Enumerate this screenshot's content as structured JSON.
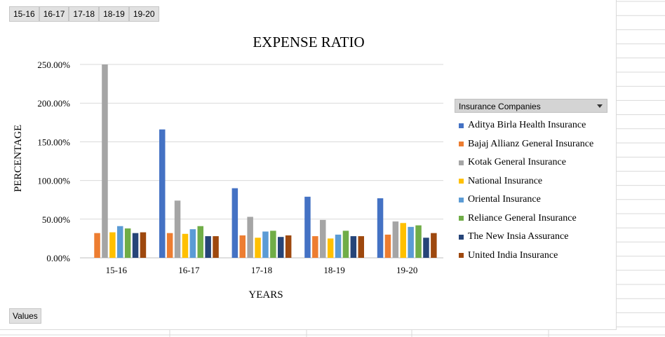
{
  "filter_buttons": [
    "15-16",
    "16-17",
    "17-18",
    "18-19",
    "19-20"
  ],
  "values_button": "Values",
  "legend_title": "Insurance  Companies",
  "chart_data": {
    "type": "bar",
    "title": "EXPENSE  RATIO",
    "xlabel": "YEARS",
    "ylabel": "PERCENTAGE",
    "ylim": [
      0,
      250
    ],
    "yticks": [
      "0.00%",
      "50.00%",
      "100.00%",
      "150.00%",
      "200.00%",
      "250.00%"
    ],
    "grid": true,
    "legend_position": "right",
    "categories": [
      "15-16",
      "16-17",
      "17-18",
      "18-19",
      "19-20"
    ],
    "series": [
      {
        "name": "Aditya Birla Health Insurance",
        "color": "#4472c4",
        "values": [
          0,
          166,
          90,
          79,
          77
        ]
      },
      {
        "name": "Bajaj Allianz General Insurance",
        "color": "#ed7d31",
        "values": [
          32,
          32,
          29,
          28,
          30
        ]
      },
      {
        "name": "Kotak General Insurance",
        "color": "#a5a5a5",
        "values": [
          250,
          74,
          53,
          49,
          47
        ]
      },
      {
        "name": "National Insurance",
        "color": "#ffc000",
        "values": [
          33,
          31,
          26,
          25,
          45
        ]
      },
      {
        "name": "Oriental Insurance",
        "color": "#5b9bd5",
        "values": [
          41,
          37,
          34,
          30,
          40
        ]
      },
      {
        "name": "Reliance General Insurance",
        "color": "#70ad47",
        "values": [
          38,
          41,
          35,
          35,
          42
        ]
      },
      {
        "name": "The New Insia Assurance",
        "color": "#264478",
        "values": [
          32,
          28,
          27,
          28,
          26
        ]
      },
      {
        "name": "United India Insurance",
        "color": "#9e480e",
        "values": [
          33,
          28,
          29,
          28,
          32
        ]
      }
    ]
  }
}
